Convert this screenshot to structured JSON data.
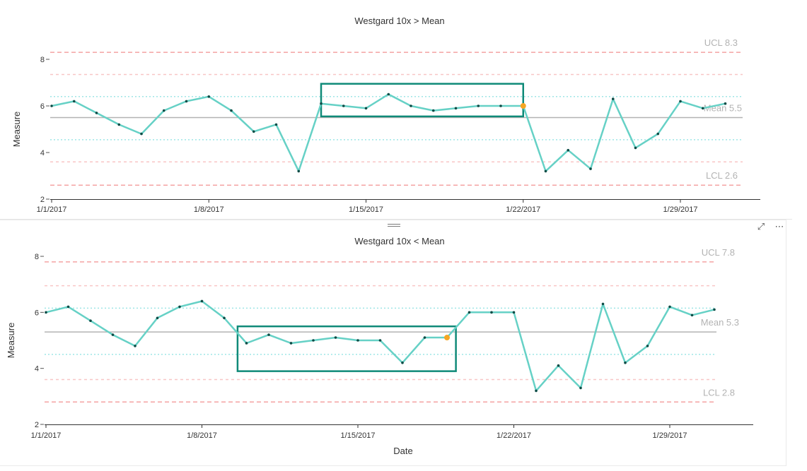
{
  "chart_data": [
    {
      "type": "line",
      "title": "Westgard 10x  > Mean",
      "xlabel": "",
      "ylabel": "Measure",
      "ylim": [
        2,
        8.5
      ],
      "yticks": [
        "2",
        "4",
        "6",
        "8"
      ],
      "xticks": [
        {
          "day": 1,
          "label": "1/1/2017"
        },
        {
          "day": 8,
          "label": "1/8/2017"
        },
        {
          "day": 15,
          "label": "1/15/2017"
        },
        {
          "day": 22,
          "label": "1/22/2017"
        },
        {
          "day": 29,
          "label": "1/29/2017"
        }
      ],
      "x": [
        1,
        2,
        3,
        4,
        5,
        6,
        7,
        8,
        9,
        10,
        11,
        12,
        13,
        14,
        15,
        16,
        17,
        18,
        19,
        20,
        21,
        22,
        23,
        24,
        25,
        26,
        27,
        28,
        29,
        30,
        31
      ],
      "values": [
        6.0,
        6.2,
        5.7,
        5.2,
        4.8,
        5.8,
        6.2,
        6.4,
        5.8,
        4.9,
        5.2,
        3.2,
        6.1,
        6.0,
        5.9,
        6.5,
        6.0,
        5.8,
        5.9,
        6.0,
        6.0,
        6.0,
        3.2,
        4.1,
        3.3,
        6.3,
        4.2,
        4.8,
        6.2,
        5.9,
        6.1
      ],
      "highlight_point": {
        "day": 22,
        "value": 6.0
      },
      "highlight_box": {
        "x_from": 13,
        "x_to": 22,
        "y_from": 5.55,
        "y_to": 6.95
      },
      "mean": {
        "value": 5.5,
        "label": "Mean 5.5"
      },
      "ucl": {
        "value": 8.3,
        "label": "UCL 8.3"
      },
      "lcl": {
        "value": 2.6,
        "label": "LCL 2.6"
      },
      "sigma_lines": [
        7.35,
        6.4,
        4.55,
        3.6
      ],
      "colors": {
        "line": "#66d1c6",
        "point": "#0d4b45",
        "highlight": "#f5a623",
        "box": "#0f8a78",
        "mean": "#b3b3b3",
        "limit": "#f4a3a3",
        "sigma2": "#f8c6c6",
        "sigma1": "#9fe6e6"
      }
    },
    {
      "type": "line",
      "title": "Westgard 10x < Mean",
      "xlabel": "Date",
      "ylabel": "Measure",
      "ylim": [
        2,
        8.3
      ],
      "yticks": [
        "2",
        "4",
        "6",
        "8"
      ],
      "xticks": [
        {
          "day": 1,
          "label": "1/1/2017"
        },
        {
          "day": 8,
          "label": "1/8/2017"
        },
        {
          "day": 15,
          "label": "1/15/2017"
        },
        {
          "day": 22,
          "label": "1/22/2017"
        },
        {
          "day": 29,
          "label": "1/29/2017"
        }
      ],
      "x": [
        1,
        2,
        3,
        4,
        5,
        6,
        7,
        8,
        9,
        10,
        11,
        12,
        13,
        14,
        15,
        16,
        17,
        18,
        19,
        20,
        21,
        22,
        23,
        24,
        25,
        26,
        27,
        28,
        29,
        30,
        31
      ],
      "values": [
        6.0,
        6.2,
        5.7,
        5.2,
        4.8,
        5.8,
        6.2,
        6.4,
        5.8,
        4.9,
        5.2,
        4.9,
        5.0,
        5.1,
        5.0,
        5.0,
        4.2,
        5.1,
        5.1,
        6.0,
        6.0,
        6.0,
        3.2,
        4.1,
        3.3,
        6.3,
        4.2,
        4.8,
        6.2,
        5.9,
        6.1
      ],
      "highlight_point": {
        "day": 19,
        "value": 5.1
      },
      "highlight_box": {
        "x_from": 9.6,
        "x_to": 19.4,
        "y_from": 3.9,
        "y_to": 5.5
      },
      "mean": {
        "value": 5.3,
        "label": "Mean 5.3"
      },
      "ucl": {
        "value": 7.8,
        "label": "UCL 7.8"
      },
      "lcl": {
        "value": 2.8,
        "label": "LCL 2.8"
      },
      "sigma_lines": [
        6.95,
        6.15,
        4.5,
        3.6
      ],
      "colors": {
        "line": "#66d1c6",
        "point": "#0d4b45",
        "highlight": "#f5a623",
        "box": "#0f8a78",
        "mean": "#b3b3b3",
        "limit": "#f4a3a3",
        "sigma2": "#f8c6c6",
        "sigma1": "#9fe6e6"
      }
    }
  ],
  "toolbar": {
    "focus_icon": "focus-mode-icon",
    "more_icon": "more-options-icon",
    "focus_glyph": "⤢",
    "more_glyph": "⋯"
  }
}
